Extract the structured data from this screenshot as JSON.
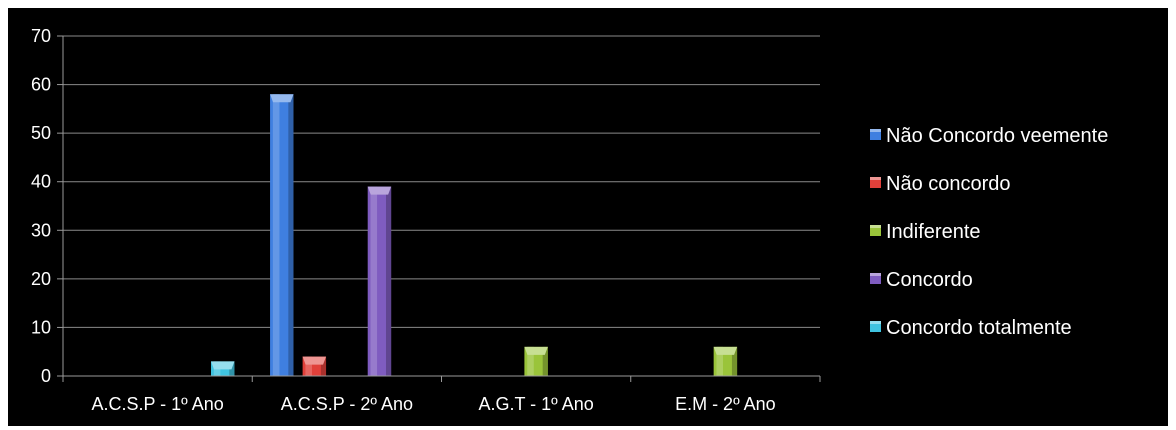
{
  "chart_data": {
    "type": "bar",
    "title": "",
    "xlabel": "",
    "ylabel": "",
    "ylim": [
      0,
      70
    ],
    "yticks": [
      0,
      10,
      20,
      30,
      40,
      50,
      60,
      70
    ],
    "grid": true,
    "legend_position": "right",
    "categories": [
      "A.C.S.P - 1º Ano",
      "A.C.S.P  - 2º Ano",
      "A.G.T - 1º Ano",
      "E.M - 2º Ano"
    ],
    "series": [
      {
        "name": "Não Concordo veemente",
        "color": "#3f7fe0",
        "values": [
          0,
          58,
          0,
          0
        ]
      },
      {
        "name": "Não concordo",
        "color": "#e0403a",
        "values": [
          0,
          4,
          0,
          0
        ]
      },
      {
        "name": "Indiferente",
        "color": "#9ac43a",
        "values": [
          0,
          0,
          6,
          6
        ]
      },
      {
        "name": "Concordo",
        "color": "#7f5cc0",
        "values": [
          0,
          39,
          0,
          0
        ]
      },
      {
        "name": "Concordo totalmente",
        "color": "#3fc3e0",
        "values": [
          3,
          0,
          0,
          0
        ]
      }
    ]
  }
}
